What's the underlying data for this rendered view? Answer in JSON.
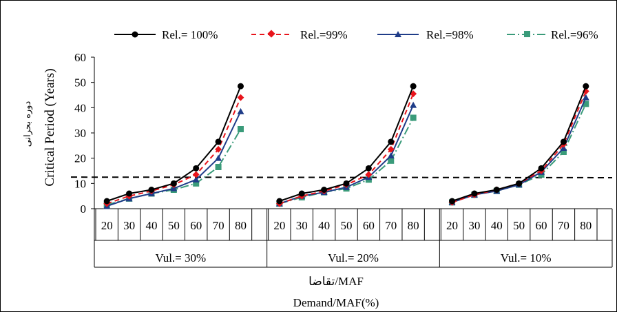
{
  "chart_data": {
    "type": "line",
    "ylabel": "Critical Period (Years)",
    "ylabel_fa": "دوره بحرانی",
    "xlabel": "Demand/MAF(%)",
    "xlabel_fa": "تقاضا/MAF",
    "ylim": [
      0,
      60
    ],
    "yticks": [
      "0",
      "10",
      "20",
      "30",
      "40",
      "50",
      "60"
    ],
    "categories": [
      "20",
      "30",
      "40",
      "50",
      "60",
      "70",
      "80"
    ],
    "groups": [
      "Vul.= 30%",
      "Vul.= 20%",
      "Vul.= 10%"
    ],
    "threshold": 12.5,
    "legend_position": "top",
    "grid": false,
    "series": [
      {
        "name": "Rel.= 100%",
        "color": "#000000",
        "values": [
          [
            3,
            6,
            7.5,
            10,
            16,
            26.5,
            48.5
          ],
          [
            3,
            6,
            7.5,
            10,
            16,
            26.5,
            48.5
          ],
          [
            3,
            6,
            7.5,
            10,
            16,
            26.5,
            48.5
          ]
        ]
      },
      {
        "name": "Rel.=99%",
        "color": "#e8141b",
        "values": [
          [
            2,
            5,
            7,
            9.5,
            13.5,
            23.5,
            44
          ],
          [
            2,
            5,
            7,
            9.5,
            13.5,
            23.5,
            45.5
          ],
          [
            2.5,
            5.5,
            7.5,
            10,
            15,
            25.5,
            46.5
          ]
        ]
      },
      {
        "name": "Rel.=98%",
        "color": "#1f3c88",
        "values": [
          [
            1,
            4,
            6,
            8,
            11.5,
            20,
            38.5
          ],
          [
            2,
            5,
            6.5,
            8.5,
            12.5,
            21,
            41
          ],
          [
            2.5,
            5.5,
            7,
            9.5,
            14.5,
            24,
            44
          ]
        ]
      },
      {
        "name": "Rel.=96%",
        "color": "#3a9b7a",
        "values": [
          [
            1.5,
            4,
            6,
            7.5,
            10,
            16.5,
            31.5
          ],
          [
            2,
            4.5,
            6.5,
            8,
            11.5,
            19,
            36
          ],
          [
            2.5,
            5.5,
            7,
            9.5,
            13.5,
            22.5,
            41.5
          ]
        ]
      }
    ]
  }
}
